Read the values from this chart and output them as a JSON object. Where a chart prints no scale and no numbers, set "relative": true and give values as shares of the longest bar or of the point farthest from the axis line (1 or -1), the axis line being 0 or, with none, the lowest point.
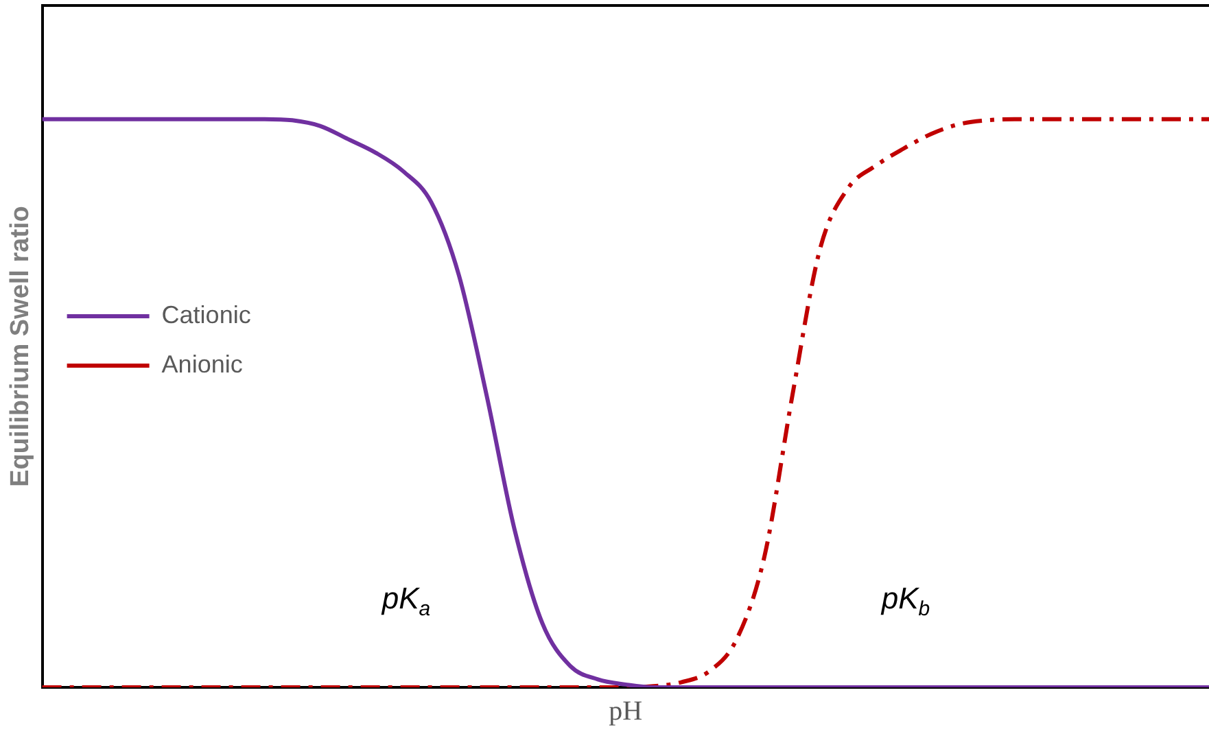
{
  "chart_data": {
    "type": "line",
    "relative": true,
    "xlabel": "pH",
    "ylabel": "Equilibrium Swell ratio",
    "categories": [
      null,
      null,
      null,
      null,
      null,
      null,
      null,
      null,
      null,
      null,
      null,
      null,
      null,
      null,
      null,
      null,
      null,
      null,
      null,
      null,
      null,
      null,
      null,
      null,
      null,
      null,
      null,
      null,
      null,
      null,
      null,
      null,
      null,
      null,
      null,
      null,
      null,
      null,
      null,
      null,
      null,
      null,
      null
    ],
    "series": [
      {
        "name": "Cationic",
        "color": "#7030a0",
        "line_style": "solid",
        "values": [
          1,
          1,
          1,
          1,
          1,
          1,
          1,
          1,
          1,
          0.998,
          0.988,
          0.965,
          0.941,
          0.908,
          0.854,
          0.725,
          0.513,
          0.278,
          0.113,
          0.038,
          0.014,
          0.005,
          0,
          0,
          0,
          0,
          0,
          0,
          0,
          0,
          0,
          0,
          0,
          0,
          0,
          0,
          0,
          0,
          0,
          0,
          0,
          0,
          0
        ]
      },
      {
        "name": "Anionic",
        "color": "#c00000",
        "line_style": "dashed",
        "values": [
          0,
          0,
          0,
          0,
          0,
          0,
          0,
          0,
          0,
          0,
          0,
          0,
          0,
          0,
          0,
          0,
          0,
          0,
          0,
          0,
          0,
          0,
          0.002,
          0.009,
          0.028,
          0.085,
          0.231,
          0.513,
          0.772,
          0.878,
          0.918,
          0.948,
          0.974,
          0.991,
          0.998,
          1,
          1,
          1,
          1,
          1,
          1,
          1,
          1
        ]
      }
    ],
    "annotations": [
      "pK$_{a}$",
      "pK$_{b}$"
    ],
    "legend": "top",
    "grid": false,
    "marker": "none"
  }
}
